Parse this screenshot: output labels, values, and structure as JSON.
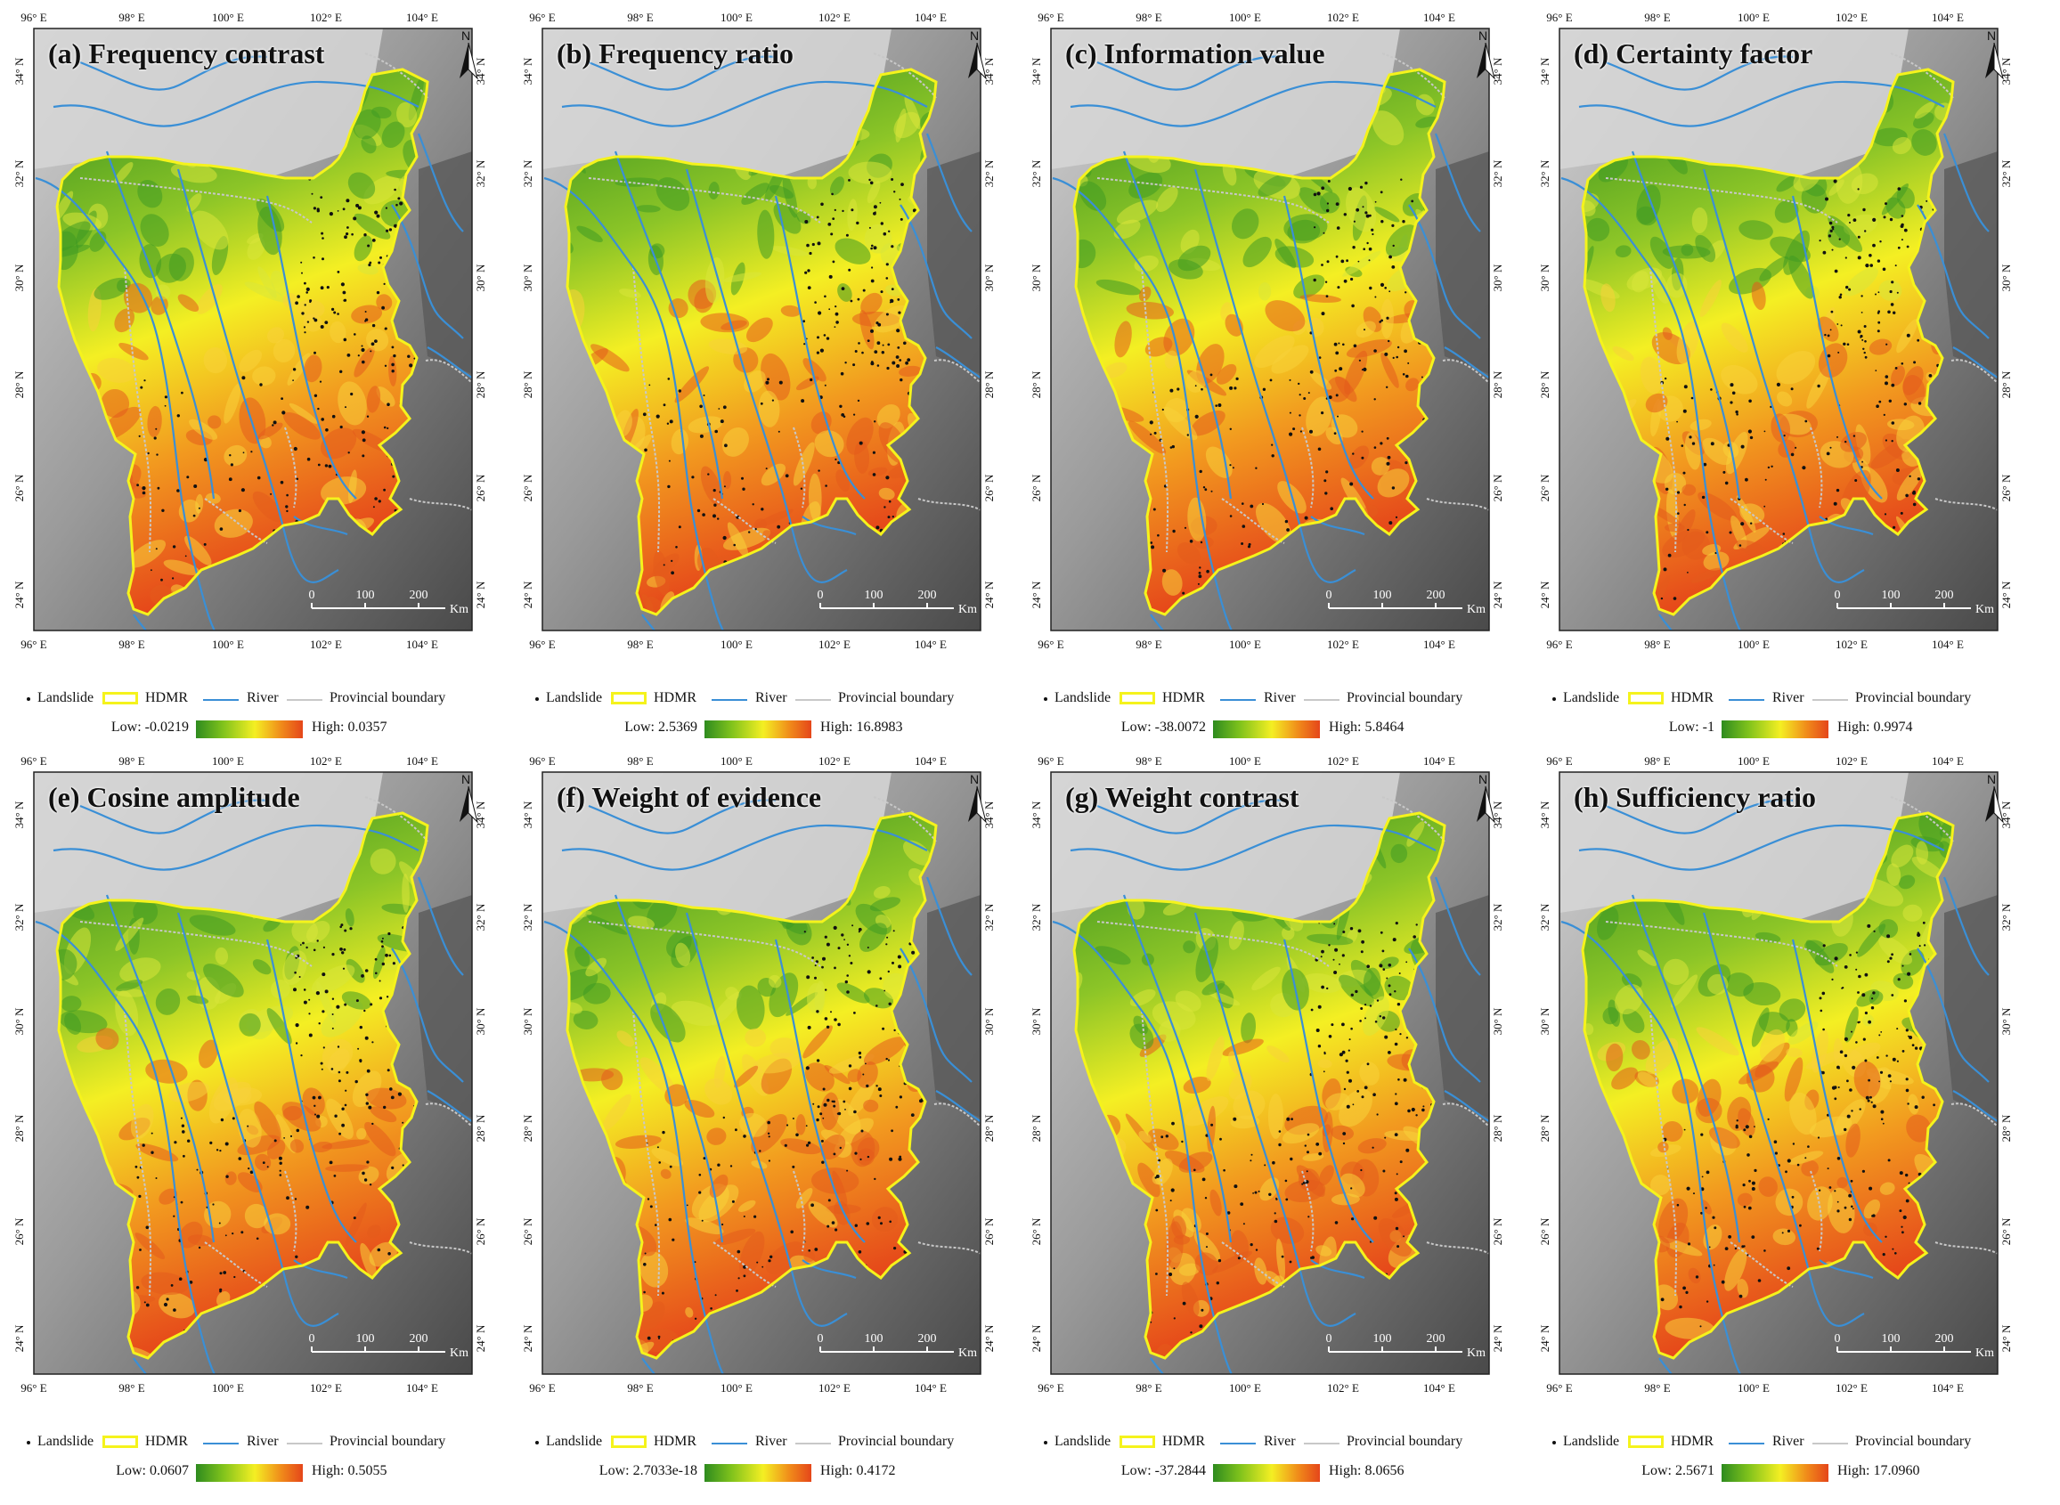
{
  "panels": [
    {
      "title": "(a) Frequency contrast",
      "low": "Low: -0.0219",
      "high": "High: 0.0357"
    },
    {
      "title": "(b) Frequency ratio",
      "low": "Low: 2.5369",
      "high": "High: 16.8983"
    },
    {
      "title": "(c) Information value",
      "low": "Low: -38.0072",
      "high": "High: 5.8464"
    },
    {
      "title": "(d) Certainty factor",
      "low": "Low: -1",
      "high": "High: 0.9974"
    },
    {
      "title": "(e) Cosine amplitude",
      "low": "Low: 0.0607",
      "high": "High: 0.5055"
    },
    {
      "title": "(f) Weight of evidence",
      "low": "Low: 2.7033e-18",
      "high": "High: 0.4172"
    },
    {
      "title": "(g) Weight contrast",
      "low": "Low: -37.2844",
      "high": "High: 8.0656"
    },
    {
      "title": "(h) Sufficiency ratio",
      "low": "Low: 2.5671",
      "high": "High: 17.0960"
    }
  ],
  "axes": {
    "lon_labels": [
      "96° E",
      "98° E",
      "100° E",
      "102° E",
      "104° E"
    ],
    "lat_labels": [
      "34° N",
      "32° N",
      "30° N",
      "28° N",
      "26° N",
      "24° N"
    ]
  },
  "scale_bar": {
    "ticks": [
      "0",
      "100",
      "200"
    ],
    "unit": "Km"
  },
  "north_arrow": {
    "letter": "N",
    "icon": "north-arrow-icon"
  },
  "legend": {
    "landslide": "Landslide",
    "hdmr": "HDMR",
    "river": "River",
    "provincial_boundary": "Provincial boundary"
  },
  "colors": {
    "hdmr_outline": "#f5f31c",
    "river": "#3a8fd6",
    "provincial_boundary": "#c8c8c8",
    "landslide": "#111111",
    "low": "#2e8b1f",
    "mid": "#f4ef23",
    "high": "#e5461a",
    "terrain_light": "#cfcfcf",
    "terrain_dark": "#4a4a4a"
  }
}
